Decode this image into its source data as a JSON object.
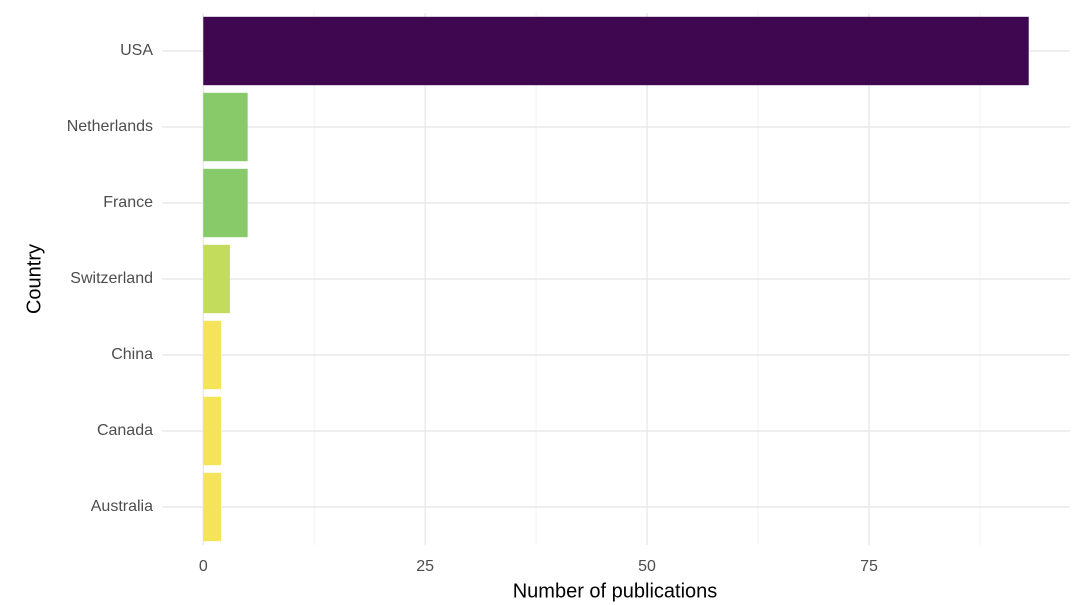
{
  "chart_data": {
    "type": "bar",
    "orientation": "horizontal",
    "categories": [
      "USA",
      "Netherlands",
      "France",
      "Switzerland",
      "China",
      "Canada",
      "Australia"
    ],
    "values": [
      93,
      5,
      5,
      3,
      2,
      2,
      2
    ],
    "colors": [
      "#3f074f",
      "#88c96a",
      "#88c96a",
      "#c3dc5c",
      "#f5e35a",
      "#f5e35a",
      "#f5e35a"
    ],
    "x_label": "Number of publications",
    "y_label": "Country",
    "xlim": [
      -4.65,
      97.65
    ],
    "xticks": [
      0,
      25,
      50,
      75
    ],
    "minor_xticks": [
      12.5,
      37.5,
      62.5,
      87.5
    ],
    "grid": true
  }
}
